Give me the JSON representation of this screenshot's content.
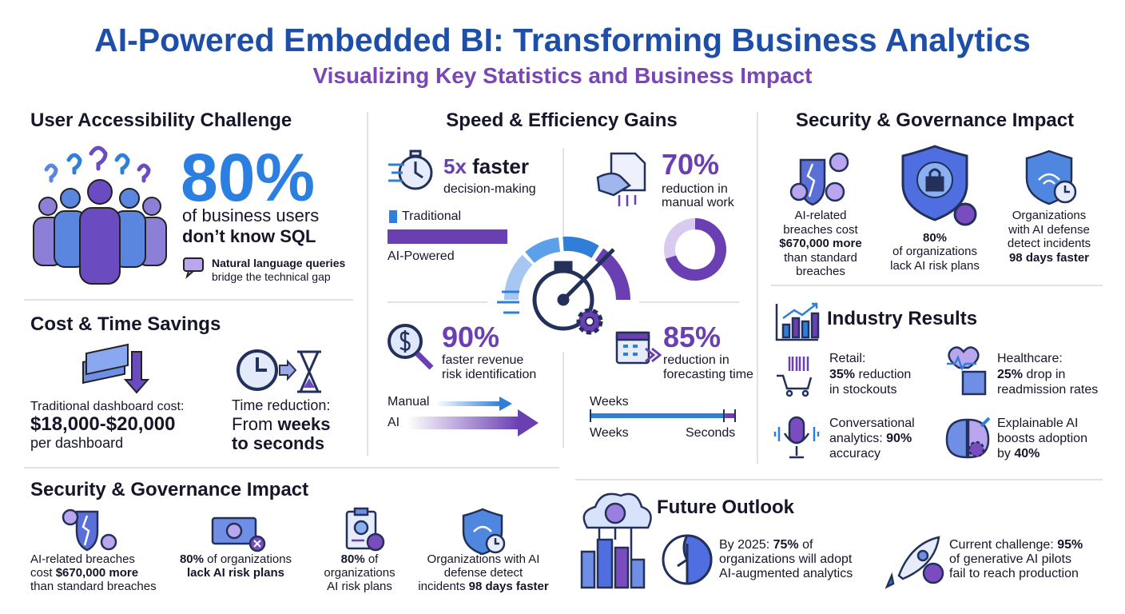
{
  "header": {
    "title": "AI-Powered Embedded BI: Transforming Business Analytics",
    "subtitle": "Visualizing Key Statistics and Business Impact"
  },
  "accessibility": {
    "title": "User Accessibility Challenge",
    "stat": "80%",
    "text": [
      "of business users",
      "don’t know SQL"
    ],
    "note": [
      "Natural language queries",
      "bridge the technical gap"
    ]
  },
  "cost": {
    "title": "Cost & Time Savings",
    "dashboard": [
      "Traditional dashboard cost:",
      "$18,000-$20,000",
      "per dashboard"
    ],
    "time": [
      "Time reduction:",
      [
        "From ",
        "weeks"
      ],
      "to seconds"
    ]
  },
  "speed": {
    "title": "Speed & Efficiency Gains",
    "decision": [
      [
        "5x",
        " faster"
      ],
      "decision-making"
    ],
    "legend": [
      "Traditional",
      "AI-Powered"
    ],
    "manual": [
      "70%",
      "reduction in",
      "manual work"
    ],
    "revenue": [
      "90%",
      "faster revenue",
      "risk identification"
    ],
    "forecast": [
      "85%",
      "reduction in",
      "forecasting time"
    ],
    "arrows": [
      "Manual",
      "AI"
    ],
    "timeline": [
      "Weeks",
      "Weeks",
      "Seconds"
    ]
  },
  "security": {
    "title": "Security & Governance Impact",
    "items": [
      [
        "AI-related",
        "breaches cost",
        "$670,000 more",
        "than standard",
        "breaches"
      ],
      [
        "80%",
        "of organizations",
        "lack AI risk plans"
      ],
      [
        "Organizations",
        "with AI defense",
        "detect incidents",
        "98 days faster"
      ]
    ]
  },
  "industry": {
    "title": "Industry Results",
    "items": [
      [
        "Retail:",
        [
          "35%",
          " reduction"
        ],
        "in stockouts"
      ],
      [
        "Healthcare:",
        [
          "25%",
          " drop in"
        ],
        "readmission rates"
      ],
      [
        "Conversational",
        [
          "analytics: ",
          "90%"
        ],
        "accuracy"
      ],
      [
        "Explainable AI",
        "boosts adoption",
        [
          "by ",
          "40%"
        ]
      ]
    ]
  },
  "security_bottom": {
    "title": "Security & Governance Impact",
    "items": [
      [
        "AI-related breaches",
        [
          "cost ",
          "$670,000 more"
        ],
        "than standard breaches"
      ],
      [
        [
          "80%",
          " of organizations"
        ],
        "lack AI risk plans"
      ],
      [
        [
          "80%",
          " of"
        ],
        "organizations",
        "AI risk plans"
      ],
      [
        "Organizations with AI",
        "defense detect",
        [
          "incidents ",
          "98 days faster"
        ]
      ]
    ]
  },
  "future": {
    "title": "Future Outlook",
    "items": [
      [
        [
          "By 2025: ",
          "75%",
          " of"
        ],
        "organizations will adopt",
        "AI-augmented analytics"
      ],
      [
        [
          "Current challenge: ",
          "95%"
        ],
        "of generative AI pilots",
        "fail to reach production"
      ]
    ]
  }
}
